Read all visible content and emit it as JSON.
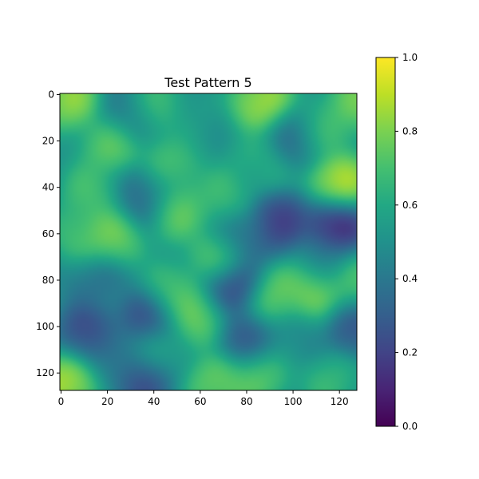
{
  "chart_data": {
    "type": "heatmap",
    "title": "Test Pattern 5",
    "xlabel": "",
    "ylabel": "",
    "x_range": [
      0,
      127
    ],
    "y_range": [
      0,
      127
    ],
    "x_ticks": [
      0,
      20,
      40,
      60,
      80,
      100,
      120
    ],
    "y_ticks": [
      0,
      20,
      40,
      60,
      80,
      100,
      120
    ],
    "y_axis_inverted": true,
    "colormap": "viridis",
    "colorbar": {
      "range": [
        0.0,
        1.0
      ],
      "ticks": [
        "0.0",
        "0.2",
        "0.4",
        "0.6",
        "0.8",
        "1.0"
      ],
      "position": "right"
    },
    "grid": false,
    "blob_field": {
      "description": "smooth random field; listed features are (x, y, value)",
      "base": 0.5,
      "features": [
        [
          4,
          2,
          0.92
        ],
        [
          22,
          22,
          0.82
        ],
        [
          30,
          8,
          0.35
        ],
        [
          47,
          30,
          0.78
        ],
        [
          40,
          5,
          0.78
        ],
        [
          87,
          3,
          0.97
        ],
        [
          128,
          3,
          0.85
        ],
        [
          112,
          15,
          0.78
        ],
        [
          120,
          38,
          1.0
        ],
        [
          102,
          18,
          0.3
        ],
        [
          14,
          42,
          0.75
        ],
        [
          35,
          43,
          0.28
        ],
        [
          50,
          50,
          0.82
        ],
        [
          70,
          45,
          0.72
        ],
        [
          22,
          62,
          0.85
        ],
        [
          10,
          60,
          0.78
        ],
        [
          94,
          55,
          0.12
        ],
        [
          118,
          57,
          0.0
        ],
        [
          68,
          70,
          0.82
        ],
        [
          78,
          62,
          0.3
        ],
        [
          112,
          72,
          0.45
        ],
        [
          128,
          82,
          0.78
        ],
        [
          74,
          83,
          0.1
        ],
        [
          92,
          88,
          0.85
        ],
        [
          108,
          84,
          0.88
        ],
        [
          48,
          86,
          0.78
        ],
        [
          15,
          80,
          0.35
        ],
        [
          37,
          97,
          0.15
        ],
        [
          60,
          96,
          0.85
        ],
        [
          12,
          103,
          0.15
        ],
        [
          80,
          105,
          0.2
        ],
        [
          128,
          100,
          0.2
        ],
        [
          35,
          122,
          0.15
        ],
        [
          2,
          124,
          0.98
        ],
        [
          68,
          125,
          0.85
        ],
        [
          86,
          120,
          0.8
        ],
        [
          42,
          110,
          0.65
        ],
        [
          25,
          112,
          0.45
        ],
        [
          100,
          105,
          0.45
        ],
        [
          116,
          124,
          0.7
        ],
        [
          55,
          15,
          0.55
        ],
        [
          85,
          30,
          0.65
        ]
      ]
    }
  }
}
